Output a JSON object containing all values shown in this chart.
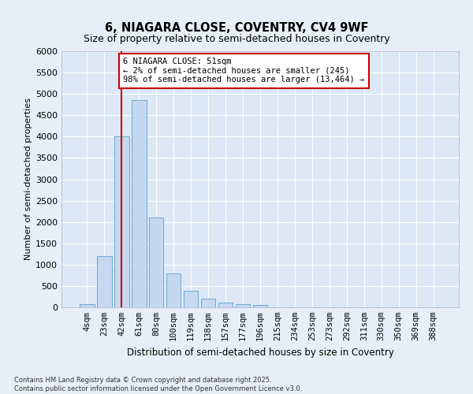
{
  "title": "6, NIAGARA CLOSE, COVENTRY, CV4 9WF",
  "subtitle": "Size of property relative to semi-detached houses in Coventry",
  "xlabel": "Distribution of semi-detached houses by size in Coventry",
  "ylabel": "Number of semi-detached properties",
  "bar_color": "#c5d8f0",
  "bar_edge_color": "#6aaad4",
  "background_color": "#dce8f5",
  "grid_color": "#ffffff",
  "vline_color": "#cc0000",
  "categories": [
    "4sqm",
    "23sqm",
    "42sqm",
    "61sqm",
    "80sqm",
    "100sqm",
    "119sqm",
    "138sqm",
    "157sqm",
    "177sqm",
    "196sqm",
    "215sqm",
    "234sqm",
    "253sqm",
    "273sqm",
    "292sqm",
    "311sqm",
    "330sqm",
    "350sqm",
    "369sqm",
    "388sqm"
  ],
  "values": [
    70,
    1200,
    4000,
    4850,
    2100,
    800,
    390,
    200,
    110,
    70,
    50,
    0,
    0,
    0,
    0,
    0,
    0,
    0,
    0,
    0,
    0
  ],
  "ylim": [
    0,
    6000
  ],
  "yticks": [
    0,
    500,
    1000,
    1500,
    2000,
    2500,
    3000,
    3500,
    4000,
    4500,
    5000,
    5500,
    6000
  ],
  "annotation_title": "6 NIAGARA CLOSE: 51sqm",
  "annotation_line1": "← 2% of semi-detached houses are smaller (245)",
  "annotation_line2": "98% of semi-detached houses are larger (13,464) →",
  "footer_line1": "Contains HM Land Registry data © Crown copyright and database right 2025.",
  "footer_line2": "Contains public sector information licensed under the Open Government Licence v3.0.",
  "vline_position": 2.0
}
